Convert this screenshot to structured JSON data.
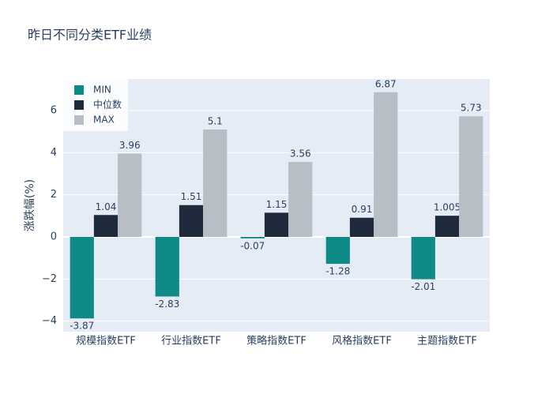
{
  "chart_data": {
    "type": "bar",
    "title": "昨日不同分类ETF业绩",
    "y_label": "涨跌幅(%)",
    "categories": [
      "规模指数ETF",
      "行业指数ETF",
      "策略指数ETF",
      "风格指数ETF",
      "主题指数ETF"
    ],
    "series": [
      {
        "name": "MIN",
        "color": "#0e8a87",
        "values": [
          -3.87,
          -2.83,
          -0.07,
          -1.28,
          -2.01
        ]
      },
      {
        "name": "中位数",
        "color": "#1f2a3c",
        "values": [
          1.04,
          1.51,
          1.15,
          0.91,
          1.005
        ]
      },
      {
        "name": "MAX",
        "color": "#b8bec6",
        "values": [
          3.96,
          5.1,
          3.56,
          6.87,
          5.73
        ]
      }
    ],
    "ylim": [
      -4.5,
      7.5
    ],
    "yticks": [
      {
        "value": -4,
        "label": "−4"
      },
      {
        "value": -2,
        "label": "−2"
      },
      0,
      2,
      4,
      6
    ],
    "grid": true,
    "legend": "top-left"
  }
}
